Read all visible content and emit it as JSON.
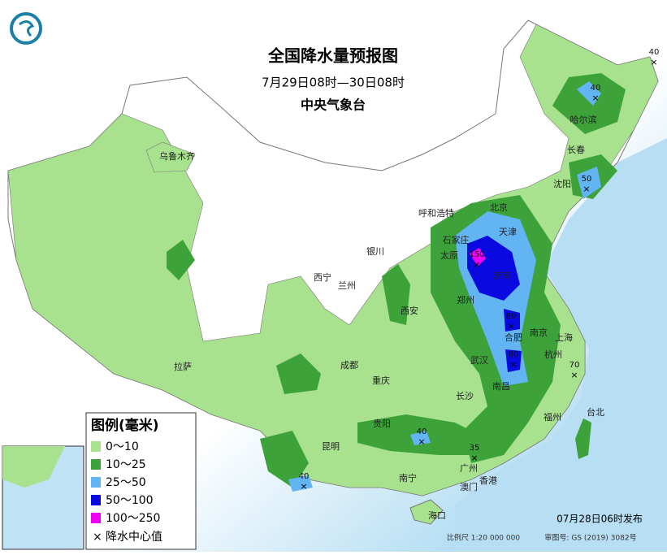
{
  "header": {
    "title": "全国降水量预报图",
    "subtitle": "7月29日08时—30日08时",
    "issuer": "中央气象台"
  },
  "legend": {
    "title": "图例(毫米)",
    "items": [
      {
        "label": "0～10",
        "color": "#a8e28e"
      },
      {
        "label": "10～25",
        "color": "#3da23a"
      },
      {
        "label": "25～50",
        "color": "#62b4f2"
      },
      {
        "label": "50～100",
        "color": "#0a0ae0"
      },
      {
        "label": "100～250",
        "color": "#f000f0"
      }
    ],
    "center_label": "降水中心值"
  },
  "cities": [
    "乌鲁木齐",
    "哈尔滨",
    "长春",
    "沈阳",
    "呼和浩特",
    "北京",
    "天津",
    "石家庄",
    "太原",
    "济南",
    "银川",
    "西宁",
    "兰州",
    "郑州",
    "西安",
    "合肥",
    "南京",
    "上海",
    "杭州",
    "武汉",
    "成都",
    "重庆",
    "拉萨",
    "长沙",
    "南昌",
    "福州",
    "台北",
    "贵阳",
    "昆明",
    "南宁",
    "广州",
    "香港",
    "澳门",
    "海口"
  ],
  "centers": [
    "40",
    "40",
    "50",
    "150",
    "80",
    "80",
    "70",
    "40",
    "35",
    "40"
  ],
  "footer": {
    "issue_time": "07月28日06时发布",
    "scale": "比例尺 1:20 000 000",
    "review_number": "审图号: GS (2019) 3082号"
  }
}
